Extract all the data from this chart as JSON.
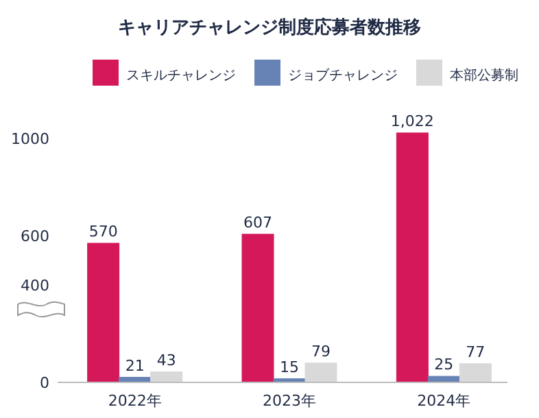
{
  "chart_data": {
    "type": "bar",
    "title": "キャリアチャレンジ制度応募者数推移",
    "categories": [
      "2022年",
      "2023年",
      "2024年"
    ],
    "series": [
      {
        "name": "スキルチャレンジ",
        "color": "#d4185a",
        "values": [
          570,
          607,
          1022
        ],
        "value_labels": [
          "570",
          "607",
          "1,022"
        ]
      },
      {
        "name": "ジョブチャレンジ",
        "color": "#6783b5",
        "values": [
          21,
          15,
          25
        ],
        "value_labels": [
          "21",
          "15",
          "25"
        ]
      },
      {
        "name": "本部公募制",
        "color": "#d9d9d9",
        "values": [
          43,
          79,
          77
        ],
        "value_labels": [
          "43",
          "79",
          "77"
        ]
      }
    ],
    "ylim": [
      0,
      1050
    ],
    "yticks": [
      0,
      400,
      600,
      1000
    ],
    "legend": "top",
    "grid": false
  }
}
